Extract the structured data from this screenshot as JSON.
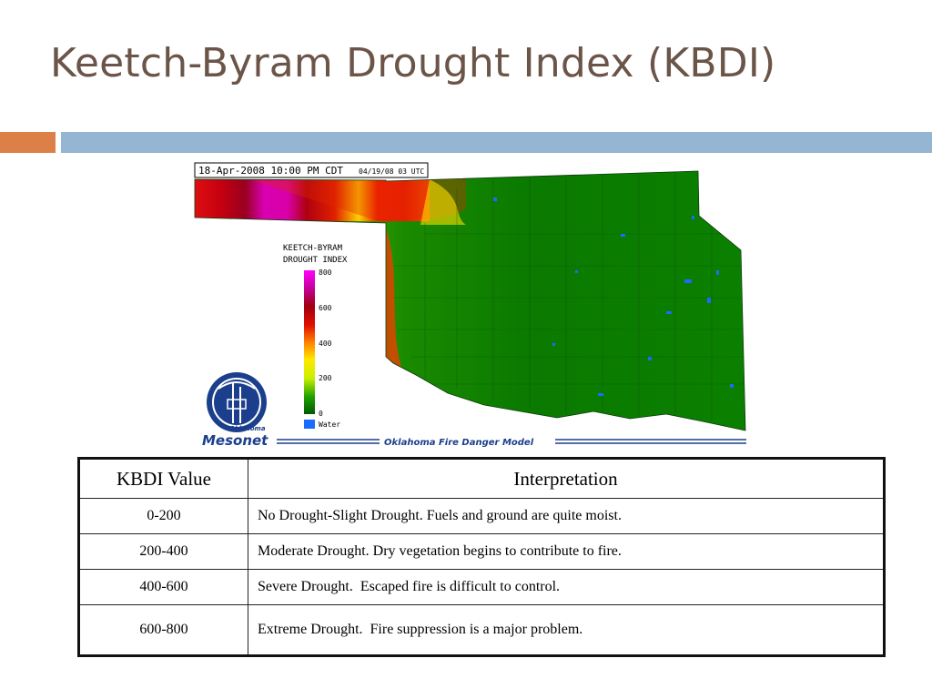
{
  "slide": {
    "title": "Keetch-Byram Drought Index (KBDI)"
  },
  "map": {
    "timestamp": "18-Apr-2008 10:00 PM CDT",
    "utc_stamp": "04/19/08 03 UTC",
    "legend_title_line1": "KEETCH-BYRAM",
    "legend_title_line2": "DROUGHT INDEX",
    "legend_ticks": [
      "800",
      "600",
      "400",
      "200",
      "0"
    ],
    "legend_water": "Water",
    "logo_top": "Oklahoma",
    "logo_name": "Mesonet",
    "model_label": "Oklahoma Fire Danger Model",
    "colors": {
      "extreme": "#c80000",
      "magenta": "#d000c0",
      "yellow": "#f8f000",
      "green": "#006e00",
      "water": "#1a6cff"
    }
  },
  "table": {
    "headers": [
      "KBDI Value",
      "Interpretation"
    ],
    "rows": [
      {
        "value": "0-200",
        "interpretation": "No Drought-Slight Drought. Fuels and ground are quite moist."
      },
      {
        "value": "200-400",
        "interpretation": "Moderate Drought. Dry vegetation begins to contribute to fire."
      },
      {
        "value": "400-600",
        "interpretation": "Severe Drought.  Escaped fire is difficult to control."
      },
      {
        "value": "600-800",
        "interpretation": "Extreme Drought.  Fire suppression is a major problem."
      }
    ]
  }
}
